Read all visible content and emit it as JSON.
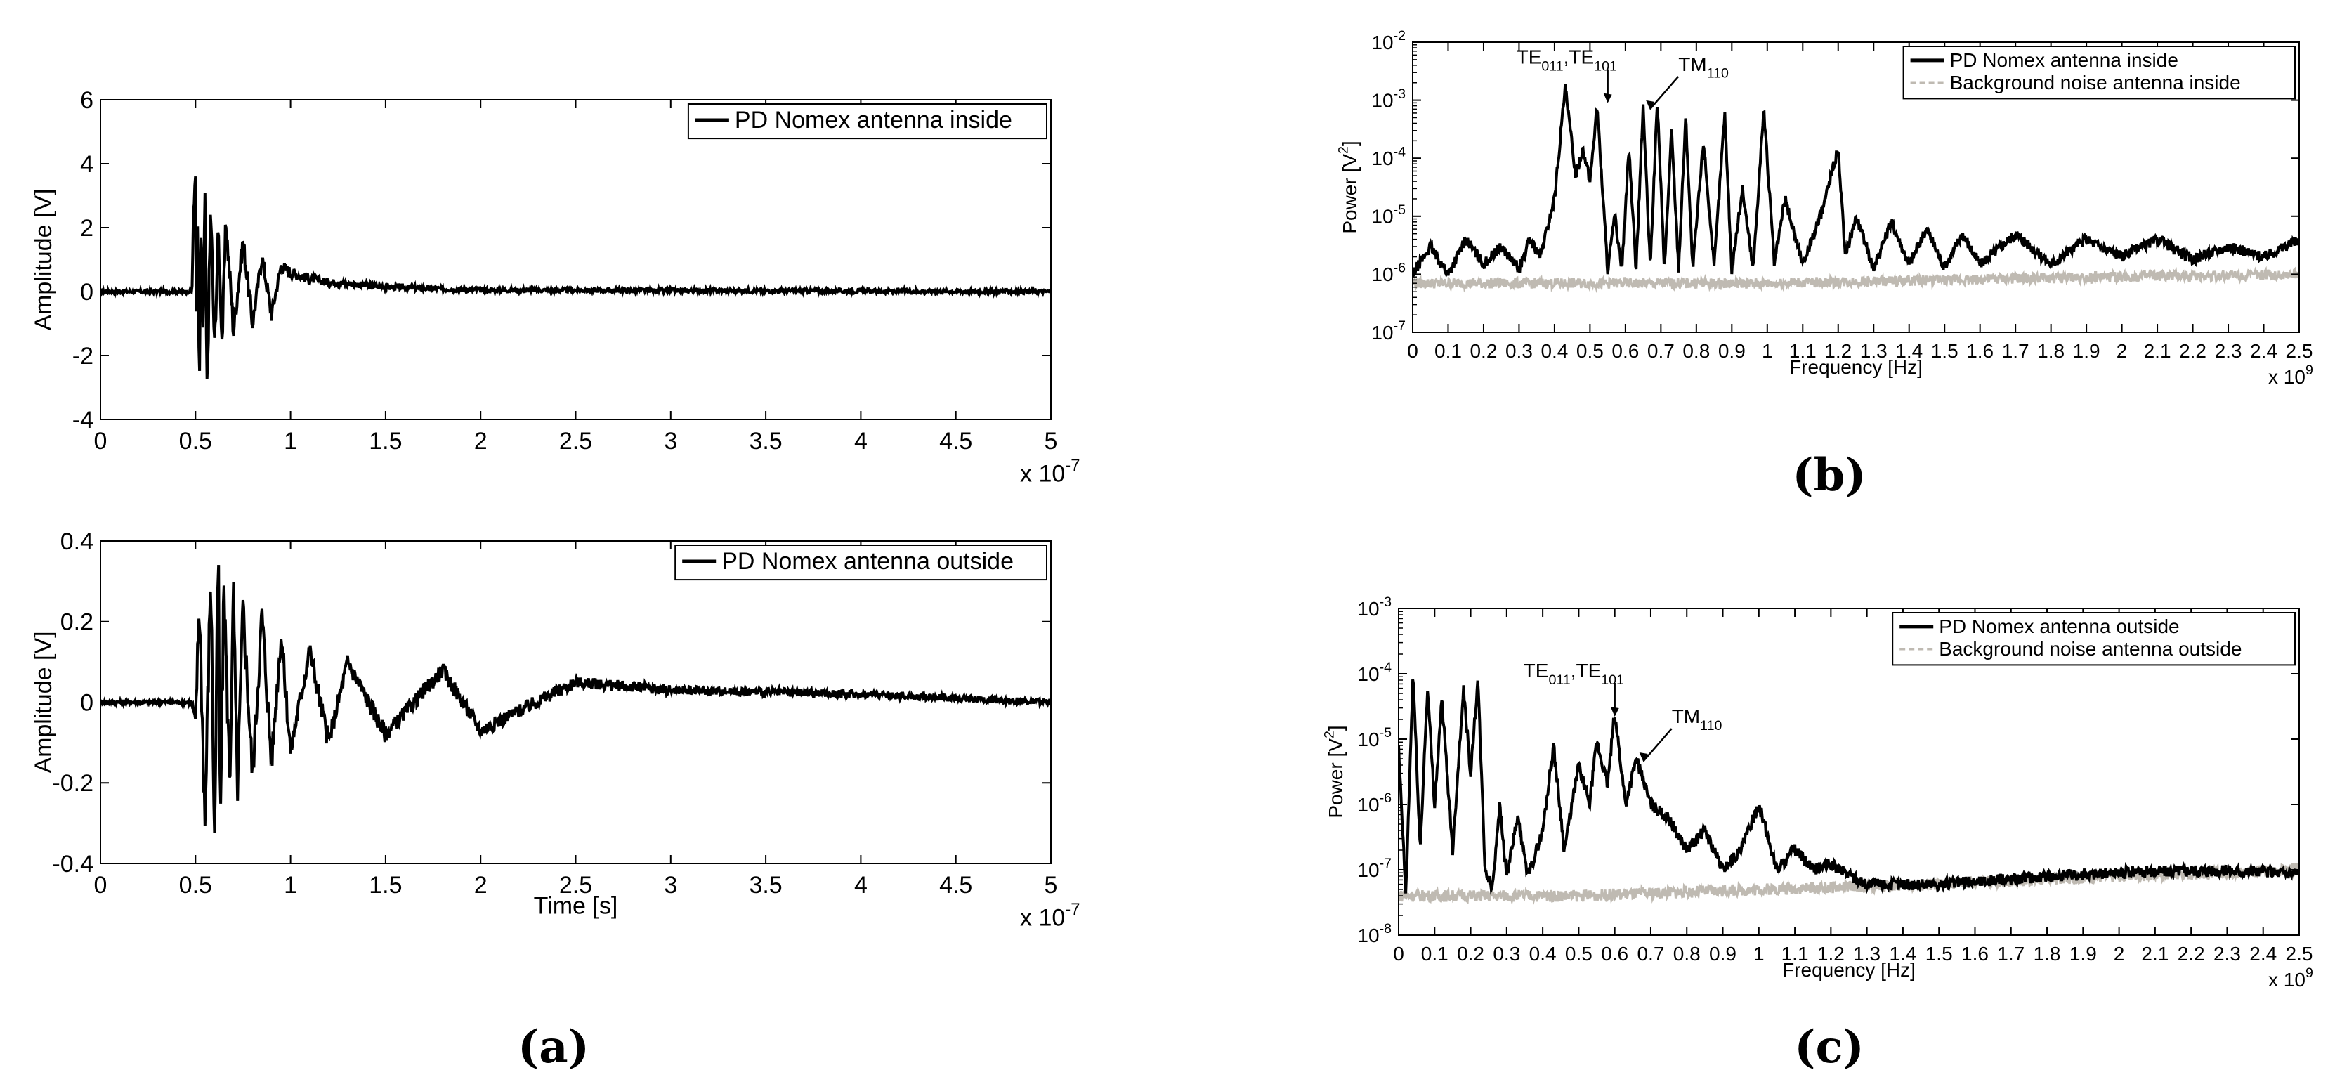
{
  "panel_labels": [
    "(a)",
    "(b)",
    "(c)"
  ],
  "chart_data": [
    {
      "id": "a_top",
      "type": "line",
      "ylabel": "Amplitude [V]",
      "xlabel": "",
      "xlim": [
        0,
        5
      ],
      "ylim": [
        -4,
        6
      ],
      "x_multiplier": "x 10",
      "x_exponent": "-7",
      "xticks": [
        "0",
        "0.5",
        "1",
        "1.5",
        "2",
        "2.5",
        "3",
        "3.5",
        "4",
        "4.5",
        "5"
      ],
      "yticks": [
        "-4",
        "-2",
        "0",
        "2",
        "4",
        "6"
      ],
      "legend": {
        "location": "top-right",
        "entries": [
          "PD Nomex antenna inside"
        ]
      },
      "series": [
        {
          "name": "PD Nomex antenna inside",
          "color": "#000000",
          "x": [
            0.0,
            0.48,
            0.5,
            0.505,
            0.51,
            0.52,
            0.53,
            0.54,
            0.55,
            0.56,
            0.58,
            0.6,
            0.62,
            0.64,
            0.66,
            0.7,
            0.75,
            0.8,
            0.85,
            0.9,
            0.95,
            1.0,
            1.1,
            1.2,
            1.3,
            1.5,
            1.7,
            2.0,
            5.0
          ],
          "y": [
            0.0,
            0.0,
            4.3,
            -3.2,
            2.5,
            -3.1,
            2.0,
            -1.5,
            3.1,
            -3.3,
            2.7,
            -1.8,
            1.9,
            -1.6,
            2.2,
            -1.2,
            1.6,
            -1.0,
            1.1,
            -0.7,
            0.8,
            0.6,
            0.4,
            0.3,
            0.25,
            0.15,
            0.1,
            0.05,
            0.0
          ]
        }
      ]
    },
    {
      "id": "a_bottom",
      "type": "line",
      "ylabel": "Amplitude [V]",
      "xlabel": "Time [s]",
      "xlim": [
        0,
        5
      ],
      "ylim": [
        -0.4,
        0.4
      ],
      "x_multiplier": "x 10",
      "x_exponent": "-7",
      "xticks": [
        "0",
        "0.5",
        "1",
        "1.5",
        "2",
        "2.5",
        "3",
        "3.5",
        "4",
        "4.5",
        "5"
      ],
      "yticks": [
        "-0.4",
        "-0.2",
        "0",
        "0.2",
        "0.4"
      ],
      "legend": {
        "location": "top-right",
        "entries": [
          "PD Nomex antenna outside"
        ]
      },
      "series": [
        {
          "name": "PD Nomex antenna outside",
          "color": "#000000",
          "x": [
            0.0,
            0.48,
            0.5,
            0.52,
            0.55,
            0.58,
            0.6,
            0.62,
            0.63,
            0.65,
            0.68,
            0.7,
            0.72,
            0.75,
            0.8,
            0.85,
            0.9,
            0.95,
            1.0,
            1.1,
            1.2,
            1.3,
            1.5,
            1.8,
            2.0,
            2.5,
            3.0,
            4.0,
            5.0
          ],
          "y": [
            0.0,
            0.0,
            -0.05,
            0.25,
            -0.3,
            0.33,
            -0.35,
            0.39,
            -0.32,
            0.3,
            -0.2,
            0.27,
            -0.23,
            0.24,
            -0.18,
            0.22,
            -0.15,
            0.17,
            -0.12,
            0.13,
            -0.1,
            0.1,
            -0.08,
            0.08,
            -0.07,
            0.05,
            0.03,
            0.02,
            0.0
          ]
        }
      ]
    },
    {
      "id": "b",
      "type": "line",
      "yscale": "log",
      "ylabel": "Power [V²]",
      "xlabel": "Frequency [Hz]",
      "xlim": [
        0,
        2.5
      ],
      "ylim": [
        1e-07,
        0.01
      ],
      "x_multiplier": "x 10",
      "x_exponent": "9",
      "xticks": [
        "0",
        "0.1",
        "0.2",
        "0.3",
        "0.4",
        "0.5",
        "0.6",
        "0.7",
        "0.8",
        "0.9",
        "1",
        "1.1",
        "1.2",
        "1.3",
        "1.4",
        "1.5",
        "1.6",
        "1.7",
        "1.8",
        "1.9",
        "2",
        "2.1",
        "2.2",
        "2.3",
        "2.4",
        "2.5"
      ],
      "yticks_exp": [
        "-7",
        "-6",
        "-5",
        "-4",
        "-3",
        "-2"
      ],
      "ytick_base": "10",
      "legend": {
        "location": "top-right",
        "entries": [
          "PD Nomex antenna inside",
          "Background noise antenna inside"
        ]
      },
      "annotations": [
        {
          "text": "TE",
          "sub": "011",
          "text2": ",TE",
          "sub2": "101",
          "x": 0.55,
          "y": 0.0008
        },
        {
          "text": "TM",
          "sub": "110",
          "x": 0.67,
          "y": 0.0006
        }
      ],
      "series": [
        {
          "name": "PD Nomex antenna inside",
          "color": "#000000",
          "x": [
            0.0,
            0.05,
            0.1,
            0.15,
            0.2,
            0.25,
            0.3,
            0.33,
            0.36,
            0.4,
            0.43,
            0.46,
            0.48,
            0.5,
            0.52,
            0.55,
            0.57,
            0.59,
            0.61,
            0.63,
            0.65,
            0.67,
            0.69,
            0.71,
            0.73,
            0.75,
            0.77,
            0.79,
            0.82,
            0.85,
            0.88,
            0.9,
            0.93,
            0.96,
            0.99,
            1.02,
            1.05,
            1.1,
            1.15,
            1.2,
            1.22,
            1.25,
            1.3,
            1.35,
            1.4,
            1.45,
            1.5,
            1.55,
            1.6,
            1.7,
            1.8,
            1.9,
            2.0,
            2.1,
            2.2,
            2.3,
            2.4,
            2.5
          ],
          "y": [
            1e-06,
            3e-06,
            1e-06,
            4e-06,
            1.5e-06,
            3e-06,
            1.2e-06,
            4e-06,
            2e-06,
            2e-05,
            0.0016,
            5e-05,
            0.00015,
            4e-05,
            0.0008,
            1.2e-06,
            1e-05,
            1.3e-06,
            0.00015,
            1.2e-06,
            0.0008,
            1.3e-06,
            0.0009,
            1.2e-06,
            0.0003,
            1.3e-06,
            0.0005,
            1.2e-06,
            0.0002,
            1.3e-06,
            0.0006,
            1.2e-06,
            3e-05,
            1.2e-06,
            0.0007,
            1.5e-06,
            2e-05,
            1.5e-06,
            1e-05,
            0.00015,
            2e-06,
            1e-05,
            1.3e-06,
            8e-06,
            1.5e-06,
            6e-06,
            1.3e-06,
            5e-06,
            1.5e-06,
            5e-06,
            1.5e-06,
            4e-06,
            2e-06,
            4e-06,
            1.8e-06,
            3e-06,
            2e-06,
            4e-06
          ]
        },
        {
          "name": "Background noise antenna inside",
          "color": "#bfbab2",
          "x": [
            0.0,
            0.5,
            1.0,
            1.5,
            2.0,
            2.5
          ],
          "y": [
            7e-07,
            7e-07,
            7e-07,
            8e-07,
            9e-07,
            1e-06
          ]
        }
      ]
    },
    {
      "id": "c",
      "type": "line",
      "yscale": "log",
      "ylabel": "Power [V²]",
      "xlabel": "Frequency [Hz]",
      "xlim": [
        0,
        2.5
      ],
      "ylim": [
        1e-08,
        0.001
      ],
      "x_multiplier": "x 10",
      "x_exponent": "9",
      "xticks": [
        "0",
        "0.1",
        "0.2",
        "0.3",
        "0.4",
        "0.5",
        "0.6",
        "0.7",
        "0.8",
        "0.9",
        "1",
        "1.1",
        "1.2",
        "1.3",
        "1.4",
        "1.5",
        "1.6",
        "1.7",
        "1.8",
        "1.9",
        "2",
        "2.1",
        "2.2",
        "2.3",
        "2.4",
        "2.5"
      ],
      "yticks_exp": [
        "-8",
        "-7",
        "-6",
        "-5",
        "-4",
        "-3"
      ],
      "ytick_base": "10",
      "legend": {
        "location": "top-right",
        "entries": [
          "PD Nomex antenna outside",
          "Background noise antenna outside"
        ]
      },
      "annotations": [
        {
          "text": "TE",
          "sub": "011",
          "text2": ",TE",
          "sub2": "101",
          "x": 0.6,
          "y": 2e-05
        },
        {
          "text": "TM",
          "sub": "110",
          "x": 0.68,
          "y": 4e-06
        }
      ],
      "series": [
        {
          "name": "PD Nomex antenna outside",
          "color": "#000000",
          "x": [
            0.0,
            0.02,
            0.04,
            0.06,
            0.08,
            0.1,
            0.12,
            0.15,
            0.18,
            0.2,
            0.22,
            0.24,
            0.26,
            0.28,
            0.3,
            0.33,
            0.36,
            0.4,
            0.43,
            0.46,
            0.5,
            0.53,
            0.55,
            0.58,
            0.6,
            0.63,
            0.66,
            0.7,
            0.75,
            0.8,
            0.85,
            0.9,
            0.95,
            1.0,
            1.05,
            1.1,
            1.15,
            1.2,
            1.3,
            1.5,
            1.8,
            2.0,
            2.2,
            2.5
          ],
          "y": [
            7e-06,
            4e-08,
            0.0001,
            2e-07,
            6e-05,
            1e-06,
            4e-05,
            2e-07,
            6e-05,
            3e-06,
            8e-05,
            1e-07,
            5e-08,
            1e-06,
            8e-08,
            6e-07,
            8e-08,
            4e-07,
            8e-06,
            2e-07,
            4e-06,
            1e-06,
            9e-06,
            2e-06,
            2.5e-05,
            1e-06,
            5e-06,
            1e-06,
            6e-07,
            2e-07,
            4e-07,
            1e-07,
            2e-07,
            1e-06,
            1e-07,
            2e-07,
            1e-07,
            1.2e-07,
            6e-08,
            6e-08,
            8e-08,
            9e-08,
            1e-07,
            9e-08
          ]
        },
        {
          "name": "Background noise antenna outside",
          "color": "#bfbab2",
          "x": [
            0.0,
            0.5,
            1.0,
            1.5,
            2.0,
            2.5
          ],
          "y": [
            4e-08,
            4e-08,
            5e-08,
            6e-08,
            8e-08,
            1e-07
          ]
        }
      ]
    }
  ]
}
